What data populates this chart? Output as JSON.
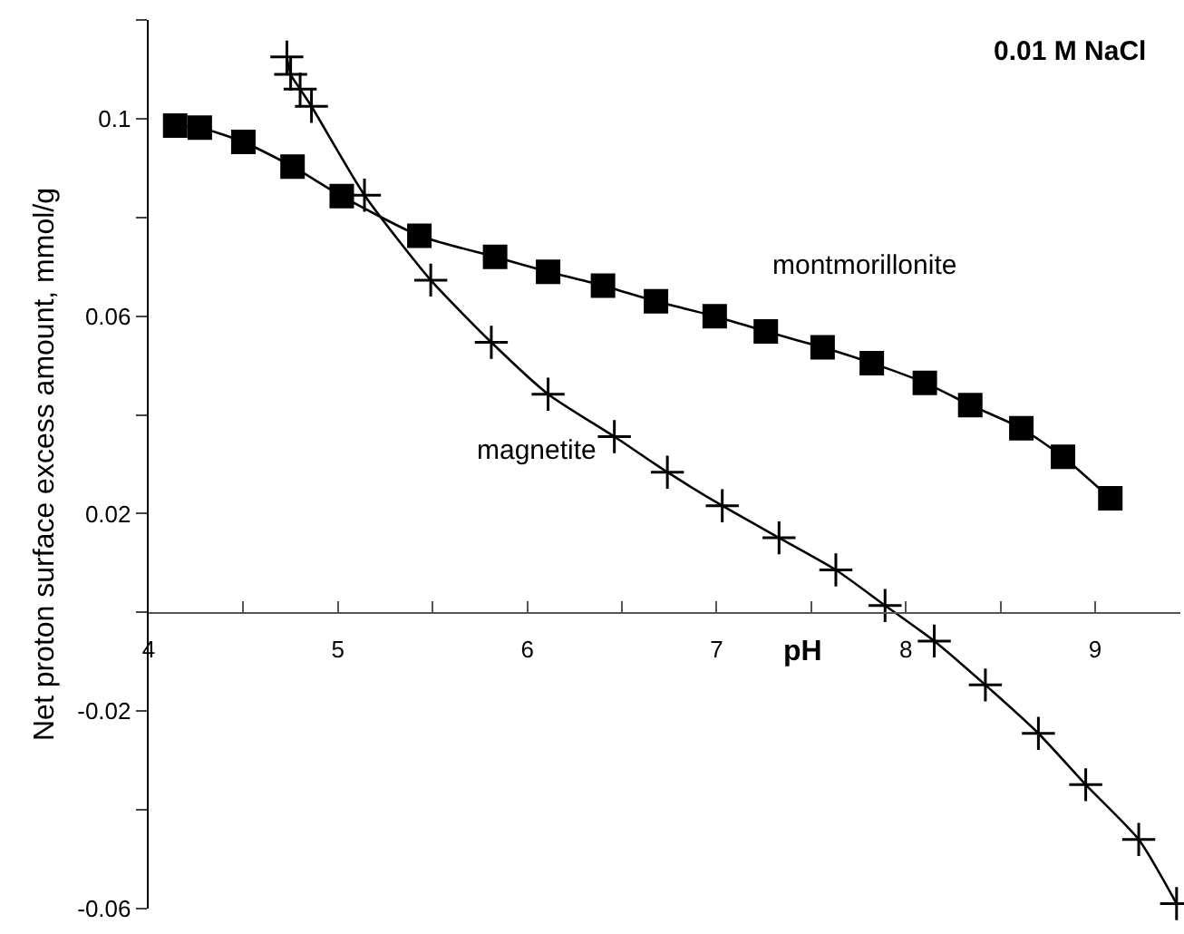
{
  "chart_data": {
    "type": "line",
    "title": "0.01 M NaCl",
    "xlabel": "pH",
    "ylabel": "Net proton surface excess amount, mmol/g",
    "xlim": [
      4,
      9.45
    ],
    "xticks": [
      4,
      {
        "value": 4.5,
        "label": null
      },
      5,
      {
        "value": 5.5,
        "label": null
      },
      6,
      {
        "value": 6.5,
        "label": null
      },
      7,
      {
        "value": 7.5,
        "label": null
      },
      8,
      {
        "value": 8.5,
        "label": null
      },
      9
    ],
    "ylim": [
      -0.06,
      0.12
    ],
    "yticks": [
      -0.06,
      {
        "value": -0.04,
        "label": null
      },
      -0.02,
      {
        "value": 0,
        "label": null
      },
      0.02,
      {
        "value": 0.04,
        "label": null
      },
      0.06,
      {
        "value": 0.08,
        "label": null
      },
      0.1,
      {
        "value": 0.12,
        "label": null
      }
    ],
    "legend": false,
    "line_style": "solid",
    "series": [
      {
        "name": "montmorillonite",
        "color": "#000000",
        "marker": "square",
        "x": [
          4.14,
          4.27,
          4.5,
          4.76,
          5.02,
          5.43,
          5.83,
          6.11,
          6.4,
          6.68,
          6.99,
          7.26,
          7.56,
          7.82,
          8.1,
          8.34,
          8.61,
          8.83,
          9.08
        ],
        "values": [
          0.0986,
          0.0982,
          0.0953,
          0.0903,
          0.0843,
          0.0763,
          0.072,
          0.069,
          0.0662,
          0.063,
          0.06,
          0.0569,
          0.0537,
          0.0505,
          0.0465,
          0.042,
          0.0373,
          0.0315,
          0.0231
        ]
      },
      {
        "name": "magnetite",
        "color": "#000000",
        "marker": "cross",
        "x": [
          4.73,
          4.75,
          4.8,
          4.86,
          5.14,
          5.49,
          5.81,
          6.11,
          6.46,
          6.74,
          7.03,
          7.33,
          7.63,
          7.89,
          8.15,
          8.42,
          8.7,
          8.95,
          9.23,
          9.43
        ],
        "values": [
          0.1125,
          0.109,
          0.106,
          0.1025,
          0.0845,
          0.0673,
          0.0547,
          0.0442,
          0.0356,
          0.0284,
          0.0216,
          0.0151,
          0.0086,
          0.0014,
          -0.0058,
          -0.0147,
          -0.0245,
          -0.0349,
          -0.046,
          -0.059
        ]
      }
    ]
  }
}
